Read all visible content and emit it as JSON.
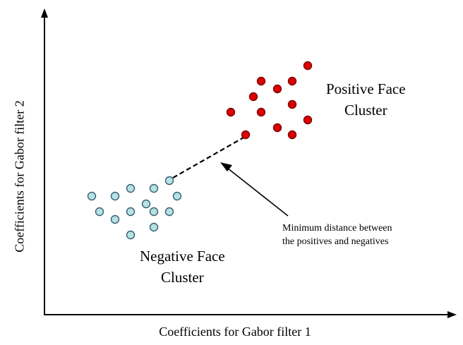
{
  "axes": {
    "x_label": "Coefficients for Gabor filter 1",
    "y_label": "Coefficients for Gabor filter 2"
  },
  "clusters": {
    "positive": {
      "label_line1": "Positive Face",
      "label_line2": "Cluster",
      "point_color": "#dd0000",
      "point_stroke": "#7a0000"
    },
    "negative": {
      "label_line1": "Negative Face",
      "label_line2": "Cluster",
      "point_color": "#b5e2e2",
      "point_stroke": "#3a5e78"
    }
  },
  "annotation": {
    "line1": "Minimum distance between",
    "line2": "the positives and negatives"
  }
}
